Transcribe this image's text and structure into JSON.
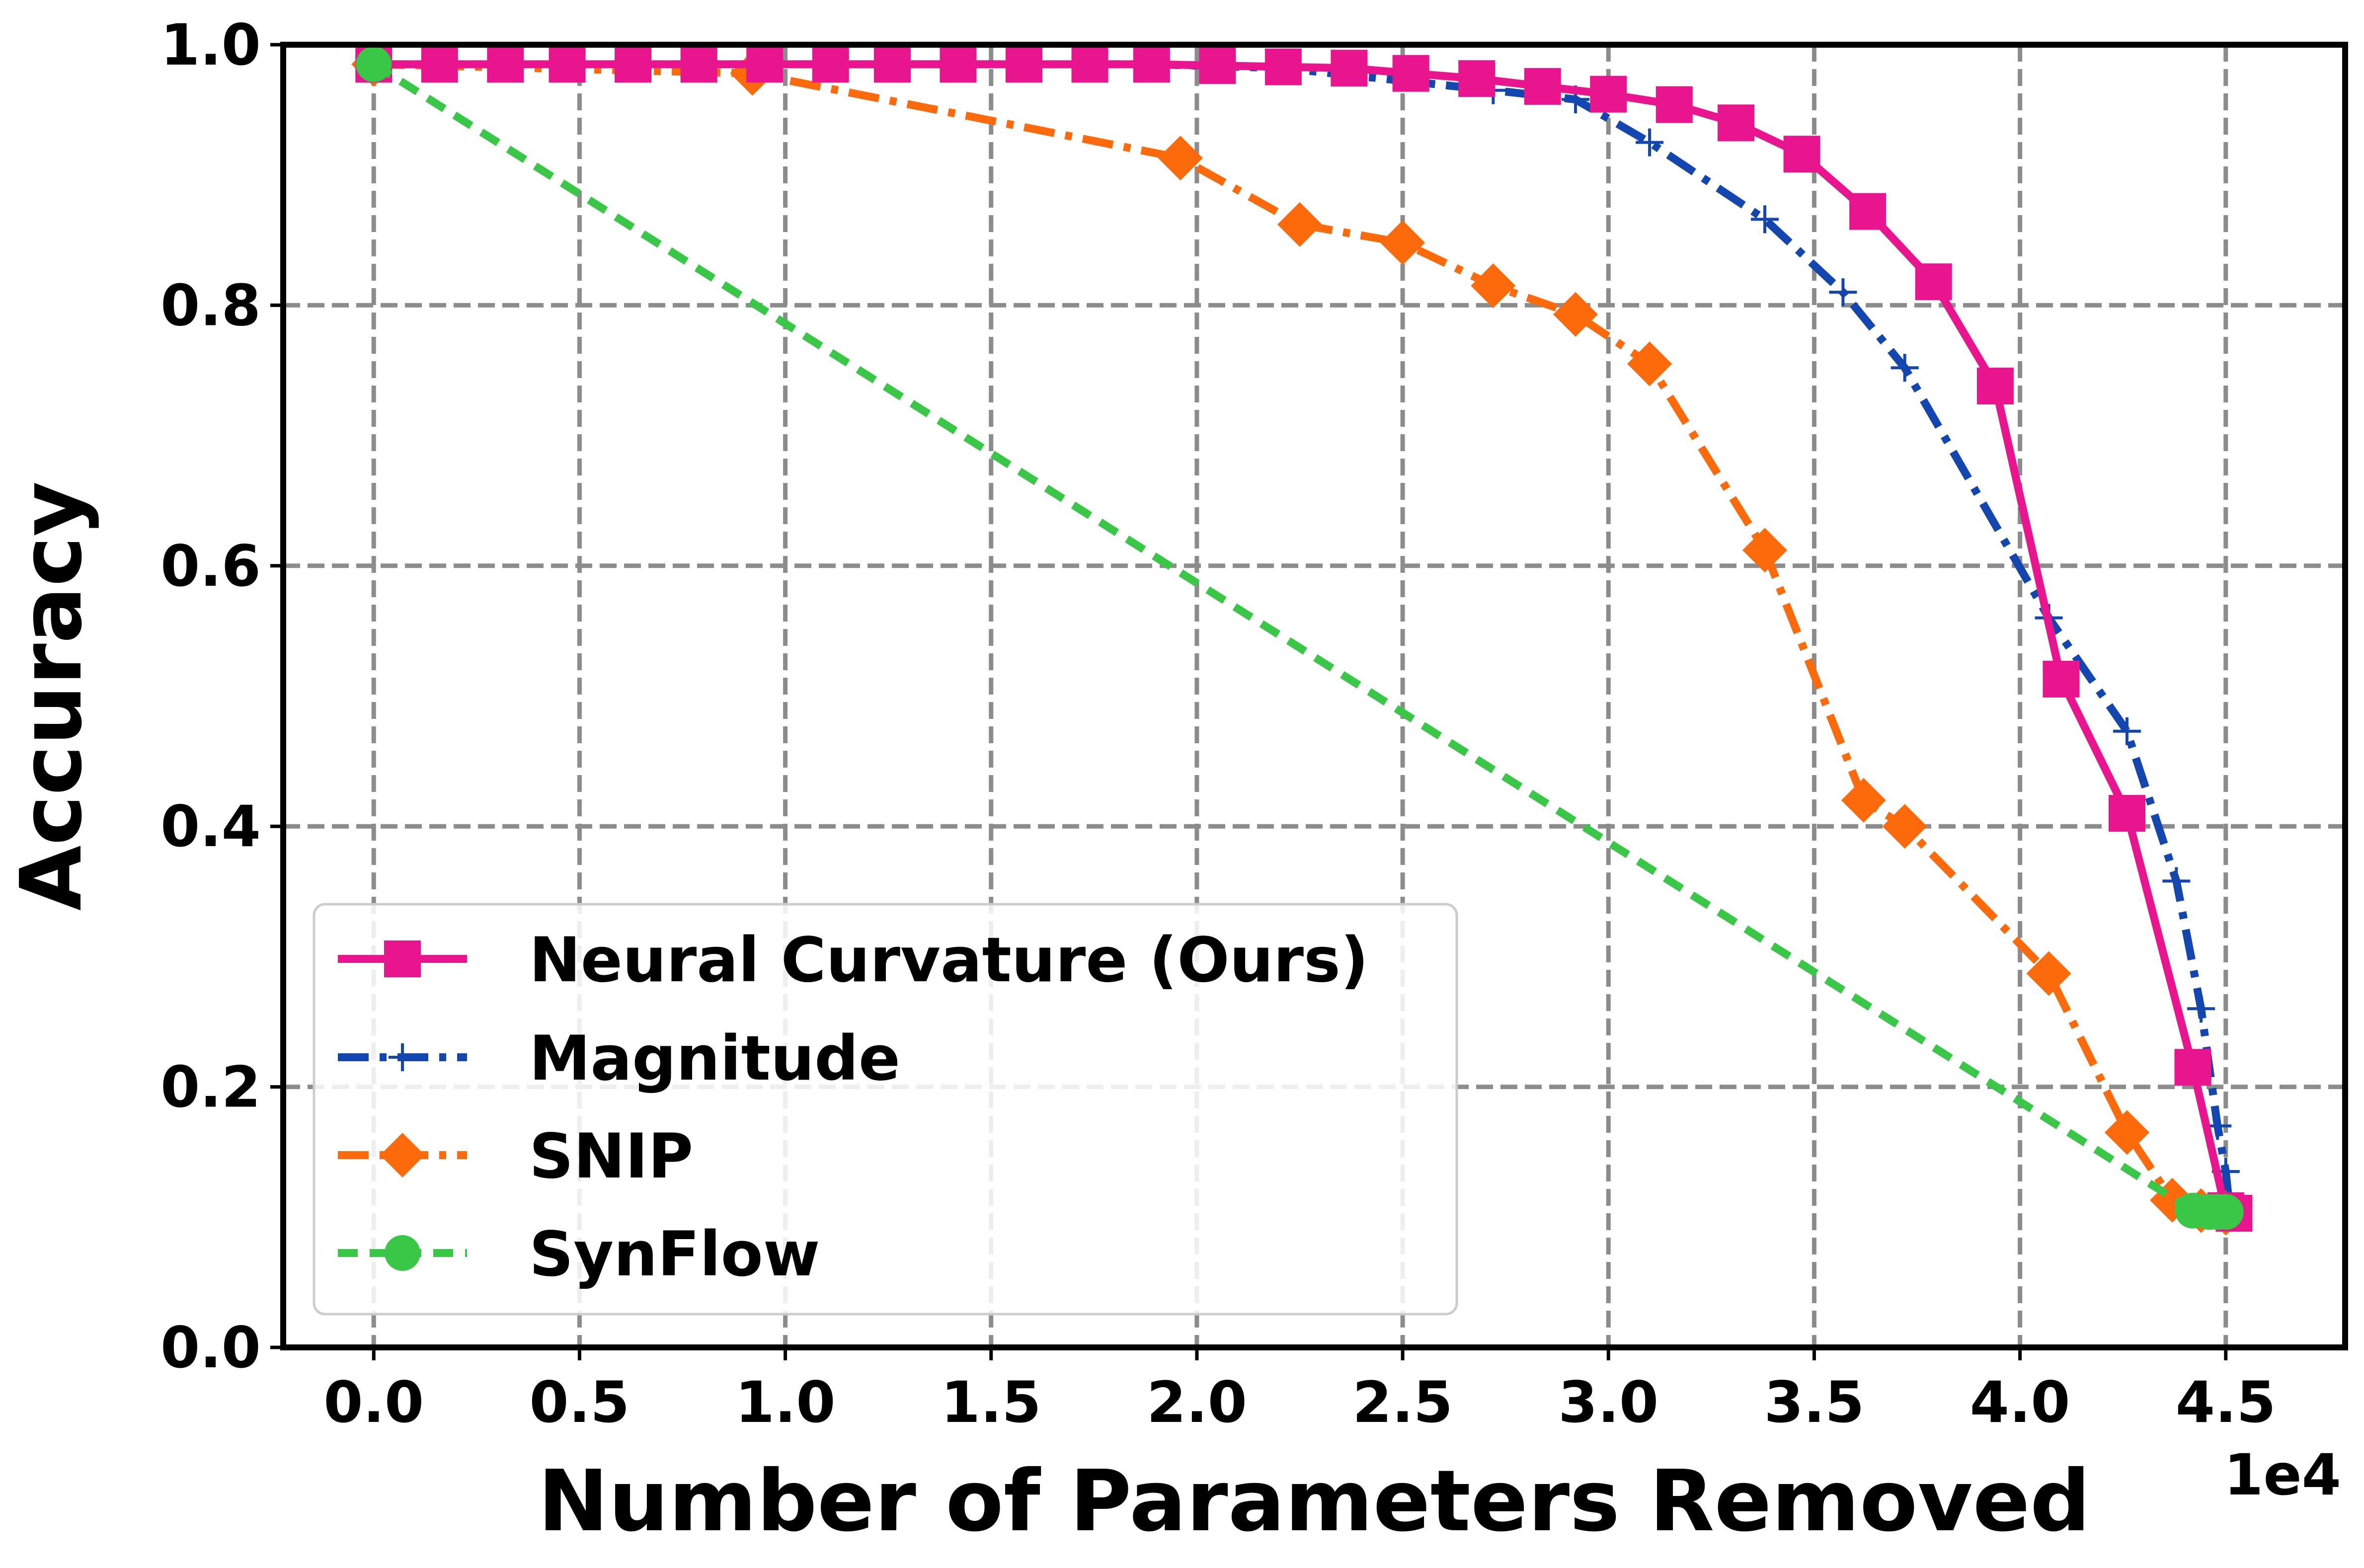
{
  "chart_data": {
    "type": "line",
    "title": "",
    "xlabel": "Number of Parameters Removed",
    "ylabel": "Accuracy",
    "x_offset_label": "1e4",
    "xlim": [
      -0.22,
      4.79
    ],
    "ylim": [
      0.0,
      1.0
    ],
    "x_ticks": [
      0.0,
      0.5,
      1.0,
      1.5,
      2.0,
      2.5,
      3.0,
      3.5,
      4.0,
      4.5
    ],
    "x_tick_labels": [
      "0.0",
      "0.5",
      "1.0",
      "1.5",
      "2.0",
      "2.5",
      "3.0",
      "3.5",
      "4.0",
      "4.5"
    ],
    "y_ticks": [
      0.0,
      0.2,
      0.4,
      0.6,
      0.8,
      1.0
    ],
    "y_tick_labels": [
      "0.0",
      "0.2",
      "0.4",
      "0.6",
      "0.8",
      "1.0"
    ],
    "grid": true,
    "legend_position": "lower-left",
    "series": [
      {
        "name": "Neural Curvature (Ours)",
        "color": "#e8158e",
        "marker": "square",
        "dash": "solid",
        "x": [
          0.0,
          0.16,
          0.32,
          0.47,
          0.63,
          0.79,
          0.95,
          1.11,
          1.26,
          1.42,
          1.58,
          1.74,
          1.89,
          2.05,
          2.21,
          2.37,
          2.52,
          2.68,
          2.84,
          3.0,
          3.16,
          3.31,
          3.47,
          3.63,
          3.79,
          3.94,
          4.1,
          4.26,
          4.42,
          4.5,
          4.52
        ],
        "y": [
          0.985,
          0.985,
          0.985,
          0.985,
          0.985,
          0.985,
          0.985,
          0.985,
          0.985,
          0.985,
          0.985,
          0.985,
          0.985,
          0.984,
          0.983,
          0.982,
          0.978,
          0.974,
          0.968,
          0.962,
          0.954,
          0.94,
          0.916,
          0.872,
          0.818,
          0.738,
          0.513,
          0.41,
          0.215,
          0.105,
          0.103
        ]
      },
      {
        "name": "Magnitude",
        "color": "#1446b0",
        "marker": "plus",
        "dash": "dashdot",
        "x": [
          0.0,
          0.32,
          0.63,
          0.95,
          1.26,
          1.58,
          1.89,
          2.21,
          2.72,
          2.92,
          3.1,
          3.38,
          3.57,
          3.72,
          4.07,
          4.26,
          4.38,
          4.44,
          4.48,
          4.5,
          4.51
        ],
        "y": [
          0.985,
          0.985,
          0.985,
          0.985,
          0.985,
          0.985,
          0.985,
          0.982,
          0.965,
          0.958,
          0.925,
          0.866,
          0.81,
          0.752,
          0.56,
          0.473,
          0.358,
          0.26,
          0.17,
          0.135,
          0.105
        ]
      },
      {
        "name": "SNIP",
        "color": "#fc6a0c",
        "marker": "diamond",
        "dash": "dashdot",
        "x": [
          0.0,
          0.92,
          1.96,
          2.25,
          2.5,
          2.72,
          2.92,
          3.1,
          3.38,
          3.62,
          3.72,
          4.07,
          4.26,
          4.37,
          4.44,
          4.5
        ],
        "y": [
          0.985,
          0.978,
          0.913,
          0.862,
          0.848,
          0.815,
          0.793,
          0.755,
          0.612,
          0.42,
          0.4,
          0.287,
          0.165,
          0.113,
          0.105,
          0.103
        ]
      },
      {
        "name": "SynFlow",
        "color": "#3ac748",
        "marker": "circle",
        "dash": "dashed",
        "x": [
          0.0,
          4.42,
          4.46,
          4.48,
          4.5
        ],
        "y": [
          0.985,
          0.105,
          0.104,
          0.104,
          0.104
        ]
      }
    ]
  }
}
